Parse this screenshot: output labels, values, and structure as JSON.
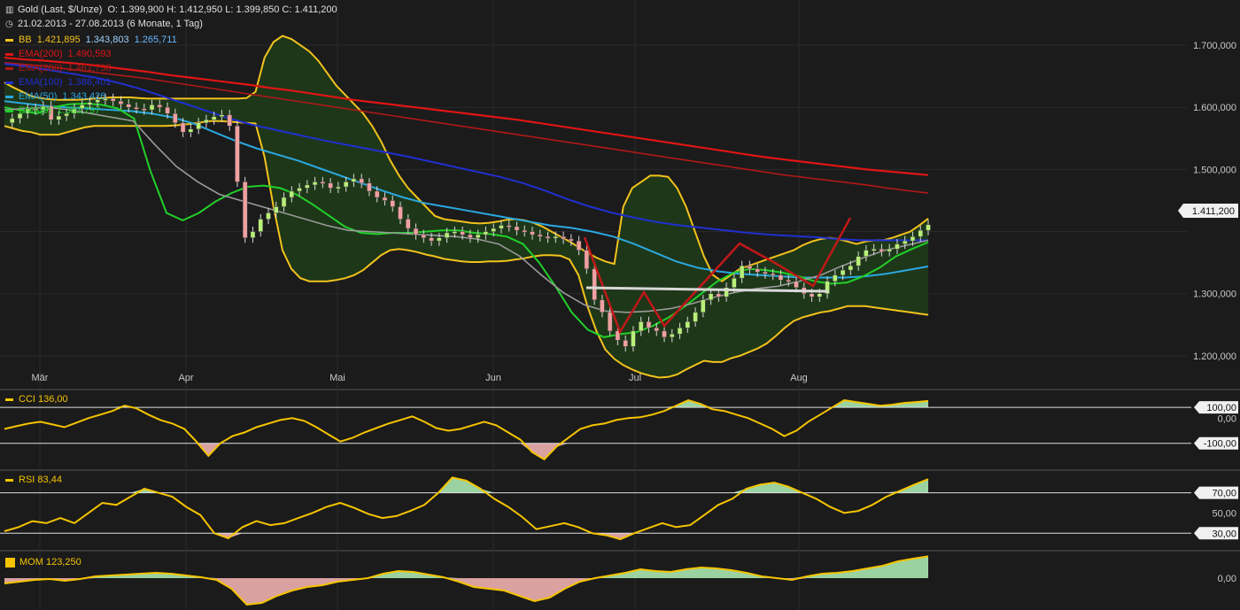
{
  "header": {
    "title": "Gold (Last, $/Unze)",
    "ohlc": "O: 1.399,900  H: 1.412,950  L: 1.399,850  C: 1.411,200",
    "range": "21.02.2013 - 27.08.2013 (6 Monate, 1 Tag)"
  },
  "colors": {
    "background": "#1b1b1b",
    "grid": "#2b2b2b",
    "bb": "#f2c21d",
    "ema200": "#e01515",
    "ema100": "#b01818",
    "ema50": "#2030d0",
    "ema20": "#2aa8e0",
    "ema9": "#22d02a",
    "sma_gray": "#9a9a9a",
    "up_candle": "#b8f078",
    "down_candle": "#f0a0a0",
    "osc_line": "#f5c400",
    "osc_pos_fill": "#a8e8b0",
    "osc_neg_fill": "#f0b0b0",
    "pattern_red": "#c01818",
    "neckline": "#d8d8d8"
  },
  "indicators": [
    {
      "label": "BB",
      "v1": "1.421,895",
      "v2": "1.343,803",
      "v3": "1.265,711",
      "color": "#f2c21d"
    },
    {
      "label": "EMA(200)",
      "v1": "1.490,593",
      "color": "#e01515"
    },
    {
      "label": "EMA(200)",
      "v1": "1.461,738",
      "color": "#b01818"
    },
    {
      "label": "EMA(100)",
      "v1": "1.386,401",
      "color": "#2030d0"
    },
    {
      "label": "EMA(50)",
      "v1": "1.343,426",
      "color": "#2aa8e0"
    },
    {
      "label": "EMA(9)",
      "v1": "1.383,797",
      "color": "#22d02a"
    }
  ],
  "oscillators": {
    "cci": {
      "label": "CCI",
      "value": "136,00",
      "levels": [
        "100,00",
        "0,00",
        "-100,00"
      ]
    },
    "rsi": {
      "label": "RSI",
      "value": "83,44",
      "levels": [
        "70,00",
        "50,00",
        "30,00"
      ]
    },
    "mom": {
      "label": "MOM",
      "value": "123,250",
      "levels": [
        "0,00"
      ]
    }
  },
  "chart_data": {
    "type": "line",
    "x_ticks": [
      "Mär",
      "Apr",
      "Mai",
      "Jun",
      "Jul",
      "Aug"
    ],
    "y_ticks": [
      "1.700,000",
      "1.600,000",
      "1.500,000",
      "1.300,000",
      "1.200,000"
    ],
    "last_price_label": "1.411,200",
    "ylim": [
      1150,
      1730
    ],
    "close": [
      1575,
      1582,
      1590,
      1598,
      1596,
      1602,
      1580,
      1586,
      1590,
      1598,
      1604,
      1608,
      1612,
      1614,
      1610,
      1605,
      1600,
      1598,
      1596,
      1604,
      1600,
      1590,
      1575,
      1560,
      1565,
      1575,
      1580,
      1585,
      1588,
      1570,
      1480,
      1390,
      1400,
      1420,
      1430,
      1440,
      1455,
      1465,
      1470,
      1475,
      1480,
      1478,
      1470,
      1472,
      1480,
      1485,
      1478,
      1465,
      1455,
      1450,
      1440,
      1420,
      1405,
      1395,
      1390,
      1385,
      1390,
      1398,
      1400,
      1395,
      1390,
      1395,
      1400,
      1405,
      1410,
      1408,
      1402,
      1400,
      1395,
      1392,
      1390,
      1392,
      1388,
      1385,
      1370,
      1340,
      1290,
      1270,
      1240,
      1225,
      1215,
      1240,
      1255,
      1245,
      1240,
      1230,
      1235,
      1245,
      1255,
      1270,
      1290,
      1300,
      1295,
      1310,
      1325,
      1345,
      1340,
      1335,
      1332,
      1330,
      1322,
      1320,
      1310,
      1300,
      1295,
      1300,
      1320,
      1330,
      1338,
      1345,
      1360,
      1370,
      1372,
      1368,
      1372,
      1380,
      1385,
      1392,
      1402,
      1411
    ],
    "series": [
      {
        "name": "BB",
        "role": "upper",
        "values": [
          1640,
          1632,
          1625,
          1618,
          1615,
          1613,
          1612,
          1612,
          1612,
          1613,
          1614,
          1615,
          1616,
          1616,
          1616,
          1615,
          1614,
          1614,
          1614,
          1614,
          1614,
          1614,
          1614,
          1614,
          1614,
          1614,
          1614,
          1615,
          1625,
          1680,
          1705,
          1715,
          1710,
          1700,
          1690,
          1675,
          1655,
          1635,
          1620,
          1605,
          1590,
          1570,
          1545,
          1515,
          1490,
          1470,
          1455,
          1440,
          1425,
          1420,
          1418,
          1416,
          1414,
          1413,
          1414,
          1416,
          1419,
          1420,
          1418,
          1414,
          1408,
          1400,
          1392,
          1384,
          1375,
          1366,
          1358,
          1352,
          1348,
          1440,
          1470,
          1480,
          1490,
          1490,
          1488,
          1470,
          1440,
          1400,
          1360,
          1330,
          1320,
          1330,
          1340,
          1345,
          1350,
          1355,
          1360,
          1365,
          1370,
          1378,
          1384,
          1388,
          1390,
          1388,
          1384,
          1380,
          1384,
          1386,
          1386,
          1390,
          1395,
          1400,
          1410,
          1421
        ]
      },
      {
        "name": "BB",
        "role": "lower",
        "values": [
          1570,
          1566,
          1562,
          1560,
          1556,
          1556,
          1556,
          1560,
          1564,
          1568,
          1570,
          1570,
          1570,
          1570,
          1570,
          1570,
          1570,
          1570,
          1570,
          1571,
          1572,
          1574,
          1576,
          1578,
          1578,
          1577,
          1576,
          1575,
          1574,
          1520,
          1440,
          1370,
          1340,
          1325,
          1320,
          1320,
          1320,
          1322,
          1325,
          1330,
          1338,
          1350,
          1362,
          1370,
          1372,
          1370,
          1367,
          1363,
          1360,
          1356,
          1354,
          1352,
          1351,
          1351,
          1352,
          1352,
          1353,
          1355,
          1357,
          1360,
          1362,
          1362,
          1361,
          1355,
          1330,
          1280,
          1240,
          1210,
          1195,
          1185,
          1178,
          1172,
          1168,
          1165,
          1166,
          1170,
          1178,
          1185,
          1192,
          1190,
          1190,
          1196,
          1200,
          1206,
          1212,
          1220,
          1232,
          1245,
          1256,
          1262,
          1266,
          1270,
          1272,
          1276,
          1280,
          1280,
          1280,
          1278,
          1276,
          1274,
          1272,
          1270,
          1268,
          1266
        ]
      },
      {
        "name": "EMA(200)",
        "values": [
          1680,
          1677,
          1675,
          1672,
          1669,
          1665,
          1661,
          1657,
          1652,
          1648,
          1644,
          1640,
          1636,
          1631,
          1627,
          1622,
          1617,
          1612,
          1608,
          1604,
          1600,
          1596,
          1592,
          1588,
          1584,
          1580,
          1575,
          1570,
          1565,
          1560,
          1555,
          1550,
          1545,
          1540,
          1535,
          1530,
          1525,
          1520,
          1516,
          1512,
          1508,
          1504,
          1500,
          1497,
          1494,
          1491
        ]
      },
      {
        "name": "EMA(200)",
        "values": [
          1672,
          1669,
          1666,
          1662,
          1658,
          1654,
          1650,
          1646,
          1641,
          1636,
          1631,
          1626,
          1621,
          1616,
          1611,
          1606,
          1601,
          1596,
          1591,
          1586,
          1581,
          1576,
          1571,
          1566,
          1561,
          1556,
          1551,
          1546,
          1541,
          1536,
          1531,
          1526,
          1521,
          1516,
          1511,
          1506,
          1501,
          1496,
          1491,
          1487,
          1483,
          1479,
          1475,
          1470,
          1466,
          1462
        ]
      },
      {
        "name": "EMA(100)",
        "values": [
          1670,
          1666,
          1660,
          1654,
          1648,
          1640,
          1630,
          1618,
          1606,
          1594,
          1582,
          1572,
          1564,
          1556,
          1548,
          1541,
          1534,
          1527,
          1520,
          1512,
          1504,
          1496,
          1488,
          1478,
          1466,
          1452,
          1440,
          1430,
          1422,
          1415,
          1410,
          1406,
          1402,
          1398,
          1395,
          1393,
          1391,
          1388,
          1386,
          1386,
          1386,
          1386
        ]
      },
      {
        "name": "EMA(50)",
        "values": [
          1610,
          1606,
          1602,
          1600,
          1598,
          1596,
          1594,
          1590,
          1584,
          1574,
          1560,
          1546,
          1534,
          1524,
          1514,
          1502,
          1490,
          1478,
          1466,
          1455,
          1446,
          1440,
          1434,
          1428,
          1422,
          1416,
          1410,
          1406,
          1400,
          1392,
          1380,
          1366,
          1352,
          1342,
          1336,
          1332,
          1330,
          1328,
          1326,
          1326,
          1326,
          1328,
          1332,
          1338,
          1344
        ]
      },
      {
        "name": "EMA(9)",
        "values": [
          1600,
          1595,
          1590,
          1600,
          1605,
          1606,
          1604,
          1598,
          1582,
          1498,
          1430,
          1418,
          1430,
          1448,
          1462,
          1472,
          1474,
          1470,
          1460,
          1444,
          1426,
          1408,
          1398,
          1396,
          1398,
          1398,
          1400,
          1402,
          1402,
          1398,
          1396,
          1392,
          1380,
          1350,
          1312,
          1270,
          1242,
          1230,
          1235,
          1238,
          1248,
          1262,
          1280,
          1300,
          1320,
          1334,
          1340,
          1338,
          1334,
          1328,
          1320,
          1316,
          1318,
          1328,
          1342,
          1360,
          1372,
          1383
        ]
      },
      {
        "name": "SMA",
        "values": [
          1596,
          1598,
          1600,
          1596,
          1590,
          1584,
          1578,
          1540,
          1505,
          1480,
          1460,
          1450,
          1440,
          1430,
          1420,
          1410,
          1402,
          1400,
          1398,
          1396,
          1394,
          1392,
          1388,
          1380,
          1360,
          1330,
          1302,
          1282,
          1272,
          1270,
          1272,
          1276,
          1284,
          1294,
          1302,
          1308,
          1312,
          1320,
          1330,
          1345,
          1358,
          1370,
          1378,
          1386
        ]
      }
    ],
    "oscillators": {
      "cci": [
        -20,
        -5,
        10,
        20,
        5,
        -10,
        15,
        40,
        60,
        80,
        110,
        95,
        60,
        30,
        10,
        -20,
        -90,
        -170,
        -100,
        -60,
        -40,
        -10,
        10,
        30,
        40,
        25,
        -10,
        -50,
        -90,
        -70,
        -40,
        -15,
        10,
        30,
        50,
        20,
        -15,
        -30,
        -20,
        0,
        20,
        0,
        -40,
        -80,
        -150,
        -190,
        -120,
        -70,
        -20,
        0,
        10,
        30,
        40,
        45,
        60,
        80,
        110,
        140,
        120,
        90,
        80,
        60,
        40,
        10,
        -20,
        -60,
        -30,
        20,
        60,
        100,
        140,
        130,
        120,
        110,
        115,
        125,
        130,
        136
      ],
      "rsi": [
        32,
        36,
        42,
        40,
        45,
        40,
        50,
        60,
        58,
        66,
        74,
        70,
        66,
        56,
        48,
        30,
        25,
        36,
        42,
        38,
        40,
        45,
        50,
        56,
        60,
        55,
        49,
        45,
        47,
        52,
        58,
        70,
        85,
        82,
        74,
        64,
        56,
        46,
        34,
        37,
        40,
        36,
        30,
        28,
        24,
        30,
        35,
        40,
        36,
        38,
        48,
        58,
        64,
        74,
        78,
        80,
        76,
        70,
        64,
        56,
        50,
        52,
        58,
        66,
        72,
        78,
        83.44
      ],
      "mom": [
        -30,
        -20,
        -10,
        -5,
        -15,
        -5,
        10,
        15,
        20,
        25,
        30,
        25,
        15,
        5,
        -10,
        -60,
        -150,
        -140,
        -100,
        -70,
        -50,
        -40,
        -20,
        -10,
        0,
        25,
        40,
        35,
        20,
        5,
        -20,
        -50,
        -60,
        -70,
        -100,
        -130,
        -110,
        -60,
        -20,
        0,
        15,
        30,
        50,
        40,
        35,
        50,
        60,
        55,
        45,
        30,
        10,
        0,
        -10,
        10,
        25,
        30,
        40,
        55,
        70,
        95,
        110,
        123.25
      ]
    }
  }
}
